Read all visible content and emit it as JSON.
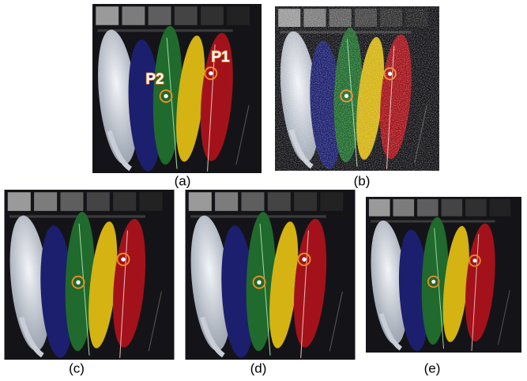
{
  "panels": [
    {
      "label": "(a)"
    },
    {
      "label": "(b)"
    },
    {
      "label": "(c)"
    },
    {
      "label": "(d)"
    },
    {
      "label": "(e)"
    }
  ],
  "points": [
    {
      "label": "P1"
    },
    {
      "label": "P2"
    }
  ]
}
